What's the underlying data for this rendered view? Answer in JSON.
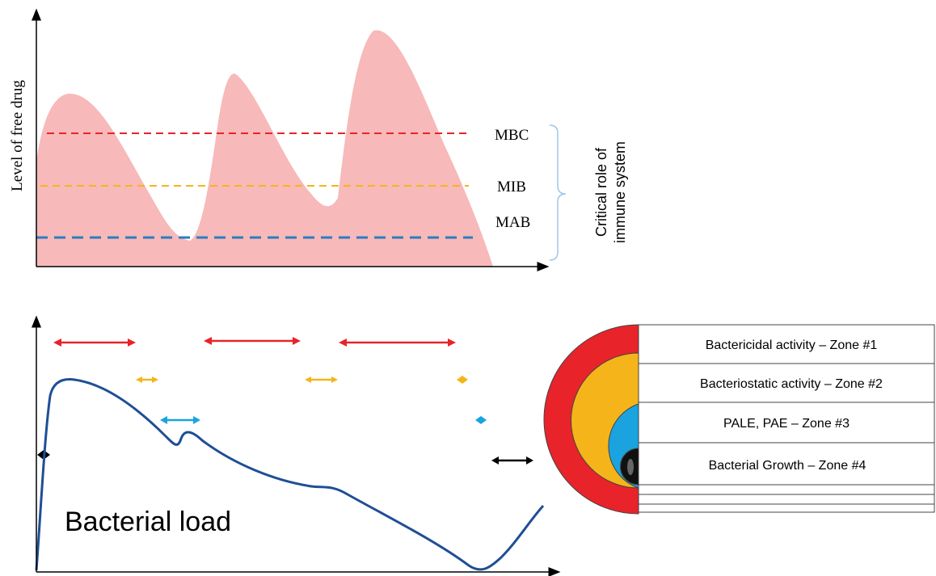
{
  "top_panel": {
    "y_axis_label": "Level of free drug",
    "threshold_labels": {
      "mbc": "MBC",
      "mib": "MIB",
      "mab": "MAB"
    },
    "bracket_label_line1": "Critical role of",
    "bracket_label_line2": "immune system",
    "colors": {
      "drug_fill": "#f7b9b9",
      "mbc": "#e8232a",
      "mib": "#f5b51a",
      "mab": "#2e7bbf",
      "bracket": "#9ec6e8"
    }
  },
  "bottom_panel": {
    "curve_label": "Bacterial load",
    "colors": {
      "curve": "#1f4e96",
      "zone1": "#e8232a",
      "zone2": "#f5b51a",
      "zone3": "#1aa3df",
      "zone4": "#111111"
    }
  },
  "legend": {
    "rows": [
      {
        "label": "Bactericidal activity – Zone #1"
      },
      {
        "label": "Bacteriostatic activity – Zone #2"
      },
      {
        "label": "PALE, PAE – Zone #3"
      },
      {
        "label": "Bacterial Growth – Zone #4"
      }
    ]
  }
}
